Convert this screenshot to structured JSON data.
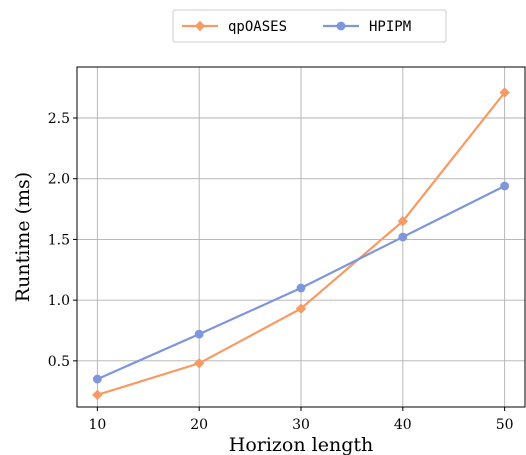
{
  "chart_data": {
    "type": "line",
    "title": "",
    "xlabel": "Horizon length",
    "ylabel": "Runtime (ms)",
    "x": [
      10,
      20,
      30,
      40,
      50
    ],
    "xlim": [
      8,
      52
    ],
    "ylim": [
      0.12,
      2.92
    ],
    "xticks": [
      10,
      20,
      30,
      40,
      50
    ],
    "xtick_labels": [
      "10",
      "20",
      "30",
      "40",
      "50"
    ],
    "yticks": [
      0.5,
      1.0,
      1.5,
      2.0,
      2.5
    ],
    "ytick_labels": [
      "0.5",
      "1.0",
      "1.5",
      "2.0",
      "2.5"
    ],
    "grid": true,
    "legend_position": "top-center-outside",
    "series": [
      {
        "name": "qpOASES",
        "values": [
          0.22,
          0.48,
          0.93,
          1.65,
          2.71
        ],
        "color": "#f79a63",
        "marker": "diamond"
      },
      {
        "name": "HPIPM",
        "values": [
          0.35,
          0.72,
          1.1,
          1.52,
          1.94
        ],
        "color": "#7e96dc",
        "marker": "circle"
      }
    ]
  }
}
